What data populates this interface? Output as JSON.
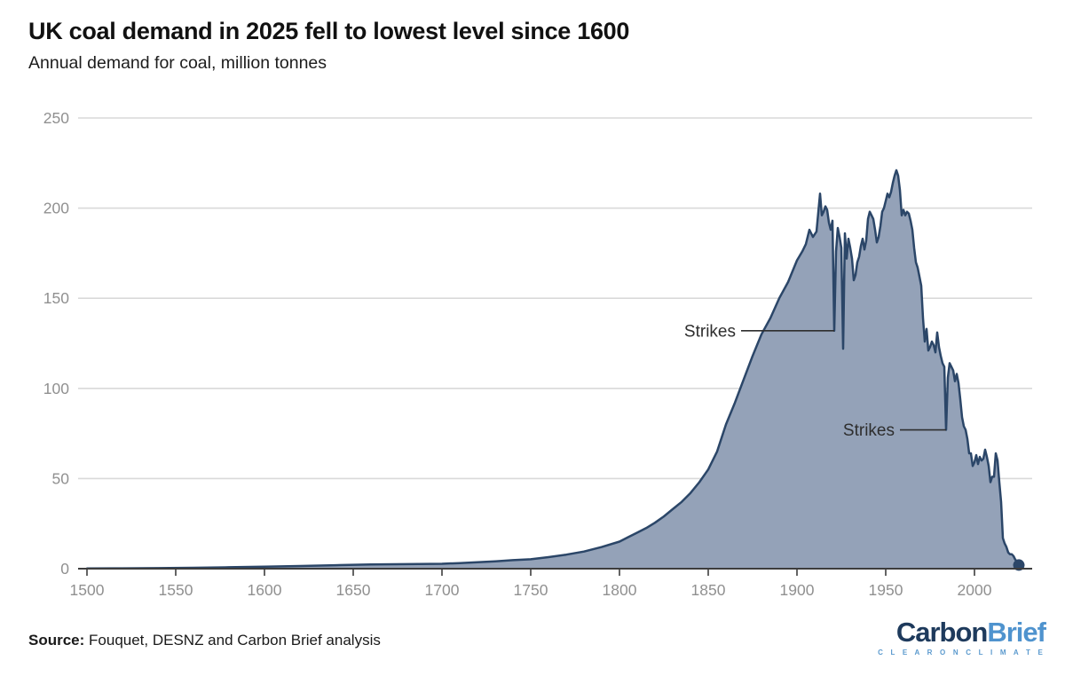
{
  "header": {
    "title": "UK coal demand in 2025 fell to lowest level since 1600",
    "subtitle": "Annual demand for coal, million tonnes"
  },
  "footer": {
    "source_label": "Source:",
    "source_text": " Fouquet, DESNZ and Carbon Brief analysis",
    "logo": {
      "part1": "Carbon",
      "part2": "Brief",
      "tagline": "C L E A R   O N   C L I M A T E"
    }
  },
  "colors": {
    "area_fill": "#94a2b8",
    "line_stroke": "#2b4668",
    "gridline": "#d9d9d9",
    "axis": "#3d3d3d",
    "tick_label": "#909090",
    "annotation": "#2e2e2e",
    "end_dot": "#2b4668"
  },
  "chart_data": {
    "type": "area",
    "title": "UK coal demand in 2025 fell to lowest level since 1600",
    "xlabel": "",
    "ylabel": "Annual demand for coal, million tonnes",
    "xlim": [
      1500,
      2033
    ],
    "ylim": [
      0,
      250
    ],
    "x_ticks": [
      1500,
      1550,
      1600,
      1650,
      1700,
      1750,
      1800,
      1850,
      1900,
      1950,
      2000
    ],
    "y_ticks": [
      0,
      50,
      100,
      150,
      200,
      250
    ],
    "grid": true,
    "legend": false,
    "series": [
      {
        "name": "UK annual coal demand (million tonnes)",
        "points": [
          [
            1500,
            0.1
          ],
          [
            1520,
            0.2
          ],
          [
            1540,
            0.3
          ],
          [
            1560,
            0.5
          ],
          [
            1580,
            0.8
          ],
          [
            1600,
            1.1
          ],
          [
            1620,
            1.5
          ],
          [
            1640,
            1.9
          ],
          [
            1660,
            2.3
          ],
          [
            1680,
            2.5
          ],
          [
            1700,
            2.7
          ],
          [
            1710,
            3.1
          ],
          [
            1720,
            3.6
          ],
          [
            1730,
            4.1
          ],
          [
            1740,
            4.7
          ],
          [
            1750,
            5.2
          ],
          [
            1760,
            6.4
          ],
          [
            1770,
            7.8
          ],
          [
            1780,
            9.5
          ],
          [
            1790,
            12
          ],
          [
            1800,
            15
          ],
          [
            1805,
            17.5
          ],
          [
            1810,
            20
          ],
          [
            1815,
            22.5
          ],
          [
            1820,
            25.5
          ],
          [
            1825,
            29
          ],
          [
            1830,
            33
          ],
          [
            1835,
            37
          ],
          [
            1840,
            42
          ],
          [
            1845,
            48
          ],
          [
            1850,
            55
          ],
          [
            1855,
            65
          ],
          [
            1860,
            80
          ],
          [
            1865,
            92
          ],
          [
            1870,
            105
          ],
          [
            1875,
            118
          ],
          [
            1880,
            130
          ],
          [
            1885,
            139
          ],
          [
            1890,
            150
          ],
          [
            1895,
            159
          ],
          [
            1900,
            171
          ],
          [
            1903,
            176
          ],
          [
            1905,
            180
          ],
          [
            1907,
            188
          ],
          [
            1909,
            184
          ],
          [
            1911,
            187
          ],
          [
            1913,
            208
          ],
          [
            1914,
            196
          ],
          [
            1915,
            198
          ],
          [
            1916,
            201
          ],
          [
            1917,
            199
          ],
          [
            1918,
            192
          ],
          [
            1919,
            188
          ],
          [
            1920,
            193
          ],
          [
            1921,
            132
          ],
          [
            1922,
            176
          ],
          [
            1923,
            189
          ],
          [
            1924,
            184
          ],
          [
            1925,
            178
          ],
          [
            1926,
            122
          ],
          [
            1927,
            186
          ],
          [
            1928,
            172
          ],
          [
            1929,
            183
          ],
          [
            1930,
            178
          ],
          [
            1931,
            172
          ],
          [
            1932,
            160
          ],
          [
            1933,
            163
          ],
          [
            1934,
            170
          ],
          [
            1935,
            173
          ],
          [
            1936,
            179
          ],
          [
            1937,
            183
          ],
          [
            1938,
            177
          ],
          [
            1939,
            182
          ],
          [
            1940,
            194
          ],
          [
            1941,
            198
          ],
          [
            1942,
            196
          ],
          [
            1943,
            194
          ],
          [
            1944,
            188
          ],
          [
            1945,
            181
          ],
          [
            1946,
            184
          ],
          [
            1947,
            190
          ],
          [
            1948,
            198
          ],
          [
            1949,
            200
          ],
          [
            1950,
            204
          ],
          [
            1951,
            208
          ],
          [
            1952,
            206
          ],
          [
            1953,
            209
          ],
          [
            1954,
            214
          ],
          [
            1955,
            218
          ],
          [
            1956,
            221
          ],
          [
            1957,
            218
          ],
          [
            1958,
            210
          ],
          [
            1959,
            196
          ],
          [
            1960,
            199
          ],
          [
            1961,
            196
          ],
          [
            1962,
            198
          ],
          [
            1963,
            197
          ],
          [
            1964,
            193
          ],
          [
            1965,
            188
          ],
          [
            1966,
            178
          ],
          [
            1967,
            170
          ],
          [
            1968,
            167
          ],
          [
            1969,
            162
          ],
          [
            1970,
            157
          ],
          [
            1971,
            139
          ],
          [
            1972,
            126
          ],
          [
            1973,
            133
          ],
          [
            1974,
            121
          ],
          [
            1975,
            123
          ],
          [
            1976,
            126
          ],
          [
            1977,
            124
          ],
          [
            1978,
            120
          ],
          [
            1979,
            131
          ],
          [
            1980,
            123
          ],
          [
            1981,
            118
          ],
          [
            1982,
            114
          ],
          [
            1983,
            112
          ],
          [
            1984,
            77
          ],
          [
            1985,
            106
          ],
          [
            1986,
            114
          ],
          [
            1987,
            112
          ],
          [
            1988,
            110
          ],
          [
            1989,
            104
          ],
          [
            1990,
            108
          ],
          [
            1991,
            103
          ],
          [
            1992,
            94
          ],
          [
            1993,
            84
          ],
          [
            1994,
            79
          ],
          [
            1995,
            77
          ],
          [
            1996,
            72
          ],
          [
            1997,
            64
          ],
          [
            1998,
            64
          ],
          [
            1999,
            57
          ],
          [
            2000,
            59
          ],
          [
            2001,
            63
          ],
          [
            2002,
            58
          ],
          [
            2003,
            62
          ],
          [
            2004,
            60
          ],
          [
            2005,
            61
          ],
          [
            2006,
            66
          ],
          [
            2007,
            62
          ],
          [
            2008,
            57
          ],
          [
            2009,
            48
          ],
          [
            2010,
            51
          ],
          [
            2011,
            51
          ],
          [
            2012,
            64
          ],
          [
            2013,
            60
          ],
          [
            2014,
            48
          ],
          [
            2015,
            37
          ],
          [
            2016,
            17
          ],
          [
            2017,
            14
          ],
          [
            2018,
            12
          ],
          [
            2019,
            9
          ],
          [
            2020,
            8
          ],
          [
            2021,
            8
          ],
          [
            2022,
            7
          ],
          [
            2023,
            5
          ],
          [
            2024,
            4
          ],
          [
            2025,
            2
          ]
        ]
      }
    ],
    "annotations": [
      {
        "label": "Strikes",
        "target_year": 1921,
        "target_value": 132,
        "gap": 105
      },
      {
        "label": "Strikes",
        "target_year": 1984,
        "target_value": 77,
        "gap": 52
      }
    ],
    "end_marker": {
      "year": 2025,
      "value": 2
    }
  }
}
